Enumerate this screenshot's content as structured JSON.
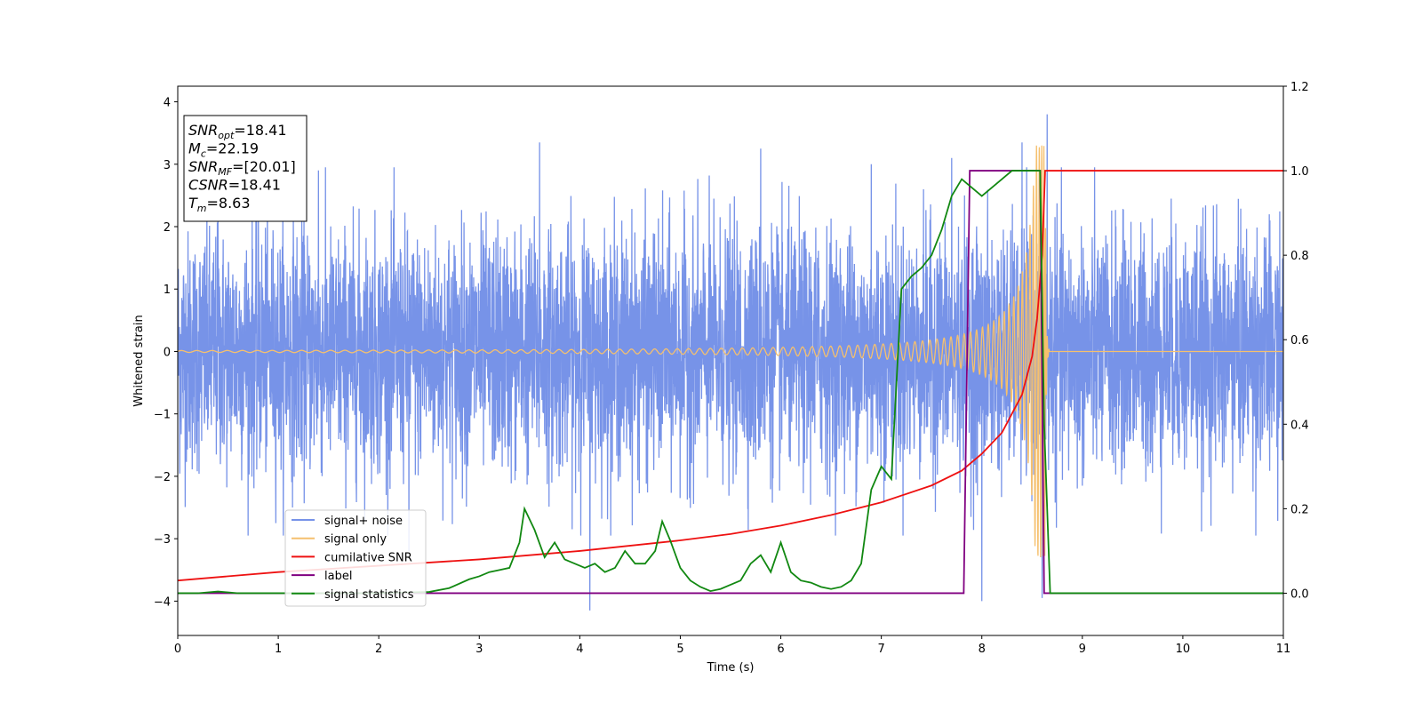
{
  "chart_data": {
    "type": "line",
    "xlabel": "Time (s)",
    "ylabel": "Whitened strain",
    "xlim": [
      0,
      11
    ],
    "ylim_left": [
      -4.55,
      4.25
    ],
    "ylim_right": [
      -0.1,
      1.2
    ],
    "xticks": [
      "0",
      "1",
      "2",
      "3",
      "4",
      "5",
      "6",
      "7",
      "8",
      "9",
      "10",
      "11"
    ],
    "yticks_left": [
      "−4",
      "−3",
      "−2",
      "−1",
      "0",
      "1",
      "2",
      "3",
      "4"
    ],
    "yticks_right": [
      "0.0",
      "0.2",
      "0.4",
      "0.6",
      "0.8",
      "1.0",
      "1.2"
    ],
    "grid": false,
    "legend_position": "lower-left",
    "info_box": [
      {
        "label": "SNR",
        "sub": "opt",
        "value": "=18.41"
      },
      {
        "label": "M",
        "sub": "c",
        "value": "=22.19"
      },
      {
        "label": "SNR",
        "sub": "MF",
        "value": "=[20.01]"
      },
      {
        "label": "CSNR",
        "sub": "",
        "value": "=18.41"
      },
      {
        "label": "T",
        "sub": "m",
        "value": "=8.63"
      }
    ],
    "series": [
      {
        "name": "signal+ noise",
        "axis": "left",
        "color": "#7793e8",
        "style": "noise",
        "noise_std": 0.95,
        "x_range": [
          0,
          11
        ],
        "peak_points": [
          [
            0.4,
            2.45
          ],
          [
            1.4,
            2.9
          ],
          [
            2.3,
            -3.2
          ],
          [
            3.6,
            3.35
          ],
          [
            4.1,
            -4.15
          ],
          [
            5.8,
            3.25
          ],
          [
            6.9,
            3.0
          ],
          [
            7.7,
            3.1
          ],
          [
            8.0,
            -4.0
          ],
          [
            8.4,
            3.35
          ],
          [
            8.65,
            3.8
          ],
          [
            8.6,
            -3.95
          ]
        ]
      },
      {
        "name": "signal only",
        "axis": "left",
        "color": "#f5c06e",
        "style": "chirp",
        "merger_time": 8.63,
        "peak_amplitude": 3.3
      },
      {
        "name": "cumilative SNR",
        "axis": "right",
        "color": "#ee1111",
        "x": [
          0,
          1,
          2,
          3,
          4,
          5,
          5.5,
          6,
          6.5,
          7,
          7.5,
          7.8,
          8,
          8.2,
          8.4,
          8.5,
          8.55,
          8.6,
          8.63,
          8.7,
          9,
          10,
          11
        ],
        "y": [
          0.03,
          0.05,
          0.065,
          0.08,
          0.1,
          0.125,
          0.14,
          0.16,
          0.185,
          0.215,
          0.255,
          0.29,
          0.33,
          0.38,
          0.47,
          0.56,
          0.65,
          0.8,
          1.0,
          1.0,
          1.0,
          1.0,
          1.0
        ]
      },
      {
        "name": "label",
        "axis": "right",
        "color": "#800080",
        "x": [
          0,
          7.82,
          7.88,
          8.58,
          8.62,
          11
        ],
        "y": [
          0,
          0,
          1,
          1,
          0,
          0
        ]
      },
      {
        "name": "signal statistics",
        "axis": "right",
        "color": "#118811",
        "x": [
          0,
          0.2,
          0.4,
          0.6,
          1.0,
          1.5,
          2.0,
          2.5,
          2.7,
          2.9,
          3.0,
          3.1,
          3.2,
          3.3,
          3.4,
          3.45,
          3.55,
          3.65,
          3.75,
          3.85,
          3.95,
          4.05,
          4.15,
          4.25,
          4.35,
          4.45,
          4.55,
          4.65,
          4.75,
          4.82,
          4.9,
          5.0,
          5.1,
          5.2,
          5.3,
          5.4,
          5.5,
          5.6,
          5.7,
          5.8,
          5.9,
          6.0,
          6.1,
          6.2,
          6.3,
          6.4,
          6.5,
          6.6,
          6.7,
          6.8,
          6.9,
          7.0,
          7.1,
          7.2,
          7.3,
          7.4,
          7.5,
          7.6,
          7.7,
          7.8,
          7.9,
          8.0,
          8.1,
          8.2,
          8.3,
          8.4,
          8.5,
          8.58,
          8.62,
          8.68,
          8.75,
          9.0,
          10.0,
          11.0
        ],
        "y": [
          0.0,
          0.0,
          0.004,
          0.0,
          0.0,
          0.0,
          0.0,
          0.003,
          0.012,
          0.033,
          0.04,
          0.05,
          0.055,
          0.06,
          0.12,
          0.2,
          0.15,
          0.085,
          0.12,
          0.08,
          0.07,
          0.06,
          0.07,
          0.05,
          0.06,
          0.1,
          0.07,
          0.07,
          0.1,
          0.17,
          0.125,
          0.06,
          0.03,
          0.015,
          0.005,
          0.01,
          0.02,
          0.03,
          0.07,
          0.09,
          0.05,
          0.12,
          0.05,
          0.03,
          0.025,
          0.015,
          0.01,
          0.015,
          0.03,
          0.07,
          0.245,
          0.3,
          0.27,
          0.72,
          0.75,
          0.77,
          0.8,
          0.86,
          0.94,
          0.98,
          0.96,
          0.94,
          0.96,
          0.98,
          1.0,
          1.0,
          1.0,
          1.0,
          0.4,
          0.0,
          0.0,
          0.0,
          0.0,
          0.0
        ]
      }
    ]
  }
}
